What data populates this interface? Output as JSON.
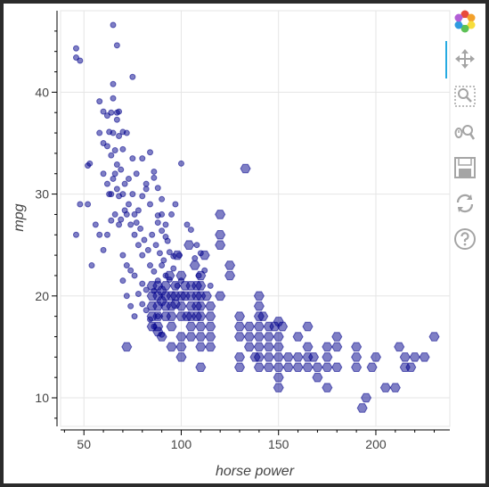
{
  "chart_data": {
    "type": "scatter",
    "title": "",
    "xlabel": "horse power",
    "ylabel": "mpg",
    "xlim": [
      38,
      238
    ],
    "ylim": [
      7.2,
      48
    ],
    "x_ticks": [
      50,
      100,
      150,
      200
    ],
    "y_ticks": [
      10,
      20,
      30,
      40
    ],
    "grid": true,
    "marker_color": "#00008b",
    "series": [
      {
        "marker": "circle",
        "points": [
          [
            46,
            44.3
          ],
          [
            46,
            43.4
          ],
          [
            48,
            43.1
          ],
          [
            65,
            46.6
          ],
          [
            67,
            44.6
          ],
          [
            52,
            32.8
          ],
          [
            53,
            33.0
          ],
          [
            46,
            26.0
          ],
          [
            48,
            29.0
          ],
          [
            52,
            29.0
          ],
          [
            54,
            23.0
          ],
          [
            58,
            39.1
          ],
          [
            60,
            38.1
          ],
          [
            62,
            37.7
          ],
          [
            64,
            38.0
          ],
          [
            65,
            39.4
          ],
          [
            67,
            38.0
          ],
          [
            68,
            38.1
          ],
          [
            70,
            36.1
          ],
          [
            67,
            37.3
          ],
          [
            65,
            36.0
          ],
          [
            63,
            36.1
          ],
          [
            72,
            36.0
          ],
          [
            75,
            41.5
          ],
          [
            65,
            40.8
          ],
          [
            58,
            36.0
          ],
          [
            60,
            35.0
          ],
          [
            62,
            34.7
          ],
          [
            64,
            33.8
          ],
          [
            66,
            34.3
          ],
          [
            68,
            35.7
          ],
          [
            70,
            34.4
          ],
          [
            67,
            32.9
          ],
          [
            69,
            32.4
          ],
          [
            71,
            31.0
          ],
          [
            73,
            31.5
          ],
          [
            75,
            33.5
          ],
          [
            77,
            32.0
          ],
          [
            80,
            33.5
          ],
          [
            82,
            31.0
          ],
          [
            84,
            34.1
          ],
          [
            86,
            32.2
          ],
          [
            88,
            30.6
          ],
          [
            90,
            29.5
          ],
          [
            60,
            32.0
          ],
          [
            62,
            31.0
          ],
          [
            64,
            30.0
          ],
          [
            66,
            32.0
          ],
          [
            68,
            29.8
          ],
          [
            70,
            30.0
          ],
          [
            72,
            28.0
          ],
          [
            74,
            27.0
          ],
          [
            76,
            26.0
          ],
          [
            78,
            25.0
          ],
          [
            80,
            24.0
          ],
          [
            63,
            30.0
          ],
          [
            65,
            31.5
          ],
          [
            67,
            30.5
          ],
          [
            69,
            27.5
          ],
          [
            71,
            28.4
          ],
          [
            73,
            29.0
          ],
          [
            75,
            30.0
          ],
          [
            77,
            27.2
          ],
          [
            79,
            26.6
          ],
          [
            81,
            25.5
          ],
          [
            83,
            24.5
          ],
          [
            56,
            27.0
          ],
          [
            58,
            26.0
          ],
          [
            60,
            24.5
          ],
          [
            62,
            26.0
          ],
          [
            64,
            27.4
          ],
          [
            66,
            28.0
          ],
          [
            68,
            27.0
          ],
          [
            70,
            24.0
          ],
          [
            72,
            23.0
          ],
          [
            74,
            22.5
          ],
          [
            76,
            22.0
          ],
          [
            85,
            26.0
          ],
          [
            87,
            25.0
          ],
          [
            89,
            24.2
          ],
          [
            91,
            23.5
          ],
          [
            93,
            25.4
          ],
          [
            95,
            28.0
          ],
          [
            97,
            29.0
          ],
          [
            99,
            24.0
          ],
          [
            88,
            27.2
          ],
          [
            90,
            28.0
          ],
          [
            92,
            27.0
          ],
          [
            84,
            23.0
          ],
          [
            86,
            22.4
          ],
          [
            88,
            21.5
          ],
          [
            90,
            23.0
          ],
          [
            92,
            22.0
          ],
          [
            94,
            21.6
          ],
          [
            96,
            22.7
          ],
          [
            98,
            21.0
          ],
          [
            86,
            20.5
          ],
          [
            80,
            21.2
          ],
          [
            82,
            20.6
          ],
          [
            76,
            28.0
          ],
          [
            78,
            28.4
          ],
          [
            80,
            29.8
          ],
          [
            82,
            30.5
          ],
          [
            84,
            29.0
          ],
          [
            86,
            31.6
          ],
          [
            88,
            27.9
          ],
          [
            90,
            26.4
          ],
          [
            92,
            25.8
          ],
          [
            94,
            24.3
          ],
          [
            96,
            23.9
          ],
          [
            70,
            21.5
          ],
          [
            72,
            20.0
          ],
          [
            74,
            19.0
          ],
          [
            76,
            18.0
          ],
          [
            78,
            20.2
          ],
          [
            80,
            19.2
          ],
          [
            82,
            18.6
          ],
          [
            84,
            17.7
          ],
          [
            86,
            17.0
          ],
          [
            88,
            18.0
          ],
          [
            90,
            16.2
          ],
          [
            100,
            33.0
          ],
          [
            105,
            26.5
          ],
          [
            108,
            25.0
          ],
          [
            110,
            24.2
          ],
          [
            112,
            22.5
          ],
          [
            115,
            21.0
          ],
          [
            103,
            27.0
          ],
          [
            107,
            23.7
          ],
          [
            109,
            22.0
          ],
          [
            100,
            21.5
          ]
        ]
      },
      {
        "marker": "hexagon",
        "points": [
          [
            85,
            21
          ],
          [
            85,
            20
          ],
          [
            85,
            19
          ],
          [
            85,
            18
          ],
          [
            85,
            17
          ],
          [
            88,
            21
          ],
          [
            88,
            20
          ],
          [
            88,
            19
          ],
          [
            88,
            18
          ],
          [
            88,
            17
          ],
          [
            88,
            16.5
          ],
          [
            90,
            20.5
          ],
          [
            90,
            19.5
          ],
          [
            92,
            21
          ],
          [
            92,
            20
          ],
          [
            92,
            19
          ],
          [
            92,
            18
          ],
          [
            94,
            22
          ],
          [
            95,
            20
          ],
          [
            95,
            19
          ],
          [
            95,
            18
          ],
          [
            95,
            17
          ],
          [
            97,
            21
          ],
          [
            97,
            20
          ],
          [
            97,
            19.2
          ],
          [
            98,
            24
          ],
          [
            100,
            22
          ],
          [
            100,
            20
          ],
          [
            100,
            19
          ],
          [
            100,
            18
          ],
          [
            100,
            16
          ],
          [
            100,
            15
          ],
          [
            102,
            21
          ],
          [
            102,
            20
          ],
          [
            103,
            18
          ],
          [
            104,
            25
          ],
          [
            105,
            21
          ],
          [
            105,
            20
          ],
          [
            105,
            19
          ],
          [
            105,
            18
          ],
          [
            105,
            17
          ],
          [
            105,
            16
          ],
          [
            107,
            23
          ],
          [
            108,
            21
          ],
          [
            108,
            20
          ],
          [
            108,
            19
          ],
          [
            108,
            18
          ],
          [
            110,
            22
          ],
          [
            110,
            21
          ],
          [
            110,
            20
          ],
          [
            110,
            19
          ],
          [
            110,
            18
          ],
          [
            110,
            17
          ],
          [
            110,
            16
          ],
          [
            110,
            15
          ],
          [
            112,
            24
          ],
          [
            113,
            20
          ],
          [
            115,
            19
          ],
          [
            115,
            18
          ],
          [
            115,
            17
          ],
          [
            115,
            16
          ],
          [
            115,
            15
          ],
          [
            120,
            28
          ],
          [
            120,
            26
          ],
          [
            120,
            25
          ],
          [
            125,
            23
          ],
          [
            130,
            18
          ],
          [
            130,
            17
          ],
          [
            130,
            16
          ],
          [
            130,
            14
          ],
          [
            130,
            13
          ],
          [
            133,
            32.5
          ],
          [
            135,
            17
          ],
          [
            135,
            16
          ],
          [
            135,
            15
          ],
          [
            138,
            14
          ],
          [
            140,
            20
          ],
          [
            140,
            19
          ],
          [
            140,
            18
          ],
          [
            140,
            17
          ],
          [
            140,
            16
          ],
          [
            140,
            15
          ],
          [
            140,
            14
          ],
          [
            140,
            13
          ],
          [
            142,
            18
          ],
          [
            145,
            17
          ],
          [
            145,
            16
          ],
          [
            145,
            15
          ],
          [
            145,
            14
          ],
          [
            145,
            13
          ],
          [
            148,
            17
          ],
          [
            150,
            16
          ],
          [
            150,
            15
          ],
          [
            150,
            14
          ],
          [
            150,
            13
          ],
          [
            150,
            12
          ],
          [
            150,
            11
          ],
          [
            152,
            17
          ],
          [
            155,
            14
          ],
          [
            155,
            13
          ],
          [
            160,
            16
          ],
          [
            160,
            14
          ],
          [
            160,
            13
          ],
          [
            165,
            15
          ],
          [
            165,
            14
          ],
          [
            165,
            13
          ],
          [
            168,
            14
          ],
          [
            170,
            13
          ],
          [
            170,
            12
          ],
          [
            175,
            15
          ],
          [
            175,
            14
          ],
          [
            175,
            13
          ],
          [
            175,
            11
          ],
          [
            180,
            16
          ],
          [
            180,
            15
          ],
          [
            180,
            13
          ],
          [
            190,
            15
          ],
          [
            190,
            14
          ],
          [
            190,
            13
          ],
          [
            193,
            9
          ],
          [
            195,
            10
          ],
          [
            198,
            13
          ],
          [
            200,
            14
          ],
          [
            205,
            11
          ],
          [
            210,
            11
          ],
          [
            212,
            15
          ],
          [
            215,
            14
          ],
          [
            215,
            13
          ],
          [
            218,
            13
          ],
          [
            220,
            14
          ],
          [
            225,
            14
          ],
          [
            230,
            16
          ],
          [
            110,
            13
          ],
          [
            72,
            15
          ],
          [
            90,
            16
          ],
          [
            95,
            15
          ],
          [
            100,
            14
          ],
          [
            120,
            20
          ],
          [
            125,
            22
          ],
          [
            165,
            17
          ],
          [
            150,
            17.5
          ]
        ]
      }
    ]
  },
  "toolbar": {
    "tools": [
      {
        "name": "bokeh-logo",
        "icon": "bokeh-logo-icon"
      },
      {
        "name": "pan-tool",
        "icon": "move-icon"
      },
      {
        "name": "box-zoom-tool",
        "icon": "box-zoom-icon"
      },
      {
        "name": "wheel-zoom-tool",
        "icon": "wheel-zoom-icon"
      },
      {
        "name": "save-tool",
        "icon": "save-icon"
      },
      {
        "name": "reset-tool",
        "icon": "reset-icon"
      },
      {
        "name": "help-tool",
        "icon": "help-icon"
      }
    ],
    "icon_color": "#a5a5a5",
    "active_color": "#26aae1"
  }
}
